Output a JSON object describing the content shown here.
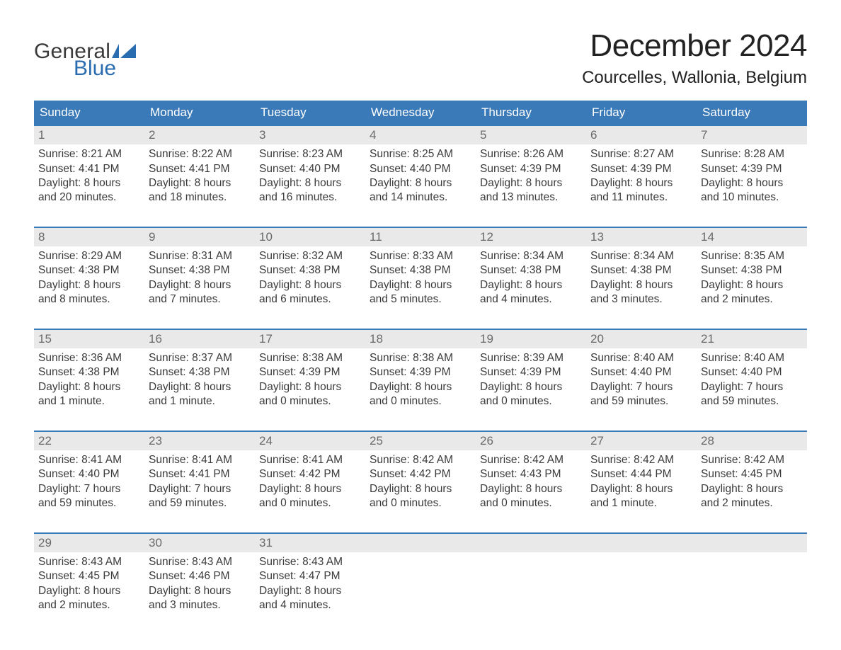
{
  "brand": {
    "general": "General",
    "blue": "Blue",
    "flag_color": "#2a6cb0"
  },
  "title": "December 2024",
  "location": "Courcelles, Wallonia, Belgium",
  "colors": {
    "header_bg": "#3b7ab8",
    "header_text": "#ffffff",
    "week_border": "#3b7ab8",
    "daynum_bg": "#e9e9e9",
    "daynum_text": "#6a6a6a",
    "body_text": "#3b3b3b",
    "title_text": "#222222",
    "page_bg": "#ffffff"
  },
  "typography": {
    "title_fontsize": 44,
    "location_fontsize": 24,
    "dow_fontsize": 17,
    "daynum_fontsize": 17,
    "body_fontsize": 15.5
  },
  "dow": [
    "Sunday",
    "Monday",
    "Tuesday",
    "Wednesday",
    "Thursday",
    "Friday",
    "Saturday"
  ],
  "weeks": [
    [
      {
        "n": "1",
        "sunrise": "Sunrise: 8:21 AM",
        "sunset": "Sunset: 4:41 PM",
        "day1": "Daylight: 8 hours",
        "day2": "and 20 minutes."
      },
      {
        "n": "2",
        "sunrise": "Sunrise: 8:22 AM",
        "sunset": "Sunset: 4:41 PM",
        "day1": "Daylight: 8 hours",
        "day2": "and 18 minutes."
      },
      {
        "n": "3",
        "sunrise": "Sunrise: 8:23 AM",
        "sunset": "Sunset: 4:40 PM",
        "day1": "Daylight: 8 hours",
        "day2": "and 16 minutes."
      },
      {
        "n": "4",
        "sunrise": "Sunrise: 8:25 AM",
        "sunset": "Sunset: 4:40 PM",
        "day1": "Daylight: 8 hours",
        "day2": "and 14 minutes."
      },
      {
        "n": "5",
        "sunrise": "Sunrise: 8:26 AM",
        "sunset": "Sunset: 4:39 PM",
        "day1": "Daylight: 8 hours",
        "day2": "and 13 minutes."
      },
      {
        "n": "6",
        "sunrise": "Sunrise: 8:27 AM",
        "sunset": "Sunset: 4:39 PM",
        "day1": "Daylight: 8 hours",
        "day2": "and 11 minutes."
      },
      {
        "n": "7",
        "sunrise": "Sunrise: 8:28 AM",
        "sunset": "Sunset: 4:39 PM",
        "day1": "Daylight: 8 hours",
        "day2": "and 10 minutes."
      }
    ],
    [
      {
        "n": "8",
        "sunrise": "Sunrise: 8:29 AM",
        "sunset": "Sunset: 4:38 PM",
        "day1": "Daylight: 8 hours",
        "day2": "and 8 minutes."
      },
      {
        "n": "9",
        "sunrise": "Sunrise: 8:31 AM",
        "sunset": "Sunset: 4:38 PM",
        "day1": "Daylight: 8 hours",
        "day2": "and 7 minutes."
      },
      {
        "n": "10",
        "sunrise": "Sunrise: 8:32 AM",
        "sunset": "Sunset: 4:38 PM",
        "day1": "Daylight: 8 hours",
        "day2": "and 6 minutes."
      },
      {
        "n": "11",
        "sunrise": "Sunrise: 8:33 AM",
        "sunset": "Sunset: 4:38 PM",
        "day1": "Daylight: 8 hours",
        "day2": "and 5 minutes."
      },
      {
        "n": "12",
        "sunrise": "Sunrise: 8:34 AM",
        "sunset": "Sunset: 4:38 PM",
        "day1": "Daylight: 8 hours",
        "day2": "and 4 minutes."
      },
      {
        "n": "13",
        "sunrise": "Sunrise: 8:34 AM",
        "sunset": "Sunset: 4:38 PM",
        "day1": "Daylight: 8 hours",
        "day2": "and 3 minutes."
      },
      {
        "n": "14",
        "sunrise": "Sunrise: 8:35 AM",
        "sunset": "Sunset: 4:38 PM",
        "day1": "Daylight: 8 hours",
        "day2": "and 2 minutes."
      }
    ],
    [
      {
        "n": "15",
        "sunrise": "Sunrise: 8:36 AM",
        "sunset": "Sunset: 4:38 PM",
        "day1": "Daylight: 8 hours",
        "day2": "and 1 minute."
      },
      {
        "n": "16",
        "sunrise": "Sunrise: 8:37 AM",
        "sunset": "Sunset: 4:38 PM",
        "day1": "Daylight: 8 hours",
        "day2": "and 1 minute."
      },
      {
        "n": "17",
        "sunrise": "Sunrise: 8:38 AM",
        "sunset": "Sunset: 4:39 PM",
        "day1": "Daylight: 8 hours",
        "day2": "and 0 minutes."
      },
      {
        "n": "18",
        "sunrise": "Sunrise: 8:38 AM",
        "sunset": "Sunset: 4:39 PM",
        "day1": "Daylight: 8 hours",
        "day2": "and 0 minutes."
      },
      {
        "n": "19",
        "sunrise": "Sunrise: 8:39 AM",
        "sunset": "Sunset: 4:39 PM",
        "day1": "Daylight: 8 hours",
        "day2": "and 0 minutes."
      },
      {
        "n": "20",
        "sunrise": "Sunrise: 8:40 AM",
        "sunset": "Sunset: 4:40 PM",
        "day1": "Daylight: 7 hours",
        "day2": "and 59 minutes."
      },
      {
        "n": "21",
        "sunrise": "Sunrise: 8:40 AM",
        "sunset": "Sunset: 4:40 PM",
        "day1": "Daylight: 7 hours",
        "day2": "and 59 minutes."
      }
    ],
    [
      {
        "n": "22",
        "sunrise": "Sunrise: 8:41 AM",
        "sunset": "Sunset: 4:40 PM",
        "day1": "Daylight: 7 hours",
        "day2": "and 59 minutes."
      },
      {
        "n": "23",
        "sunrise": "Sunrise: 8:41 AM",
        "sunset": "Sunset: 4:41 PM",
        "day1": "Daylight: 7 hours",
        "day2": "and 59 minutes."
      },
      {
        "n": "24",
        "sunrise": "Sunrise: 8:41 AM",
        "sunset": "Sunset: 4:42 PM",
        "day1": "Daylight: 8 hours",
        "day2": "and 0 minutes."
      },
      {
        "n": "25",
        "sunrise": "Sunrise: 8:42 AM",
        "sunset": "Sunset: 4:42 PM",
        "day1": "Daylight: 8 hours",
        "day2": "and 0 minutes."
      },
      {
        "n": "26",
        "sunrise": "Sunrise: 8:42 AM",
        "sunset": "Sunset: 4:43 PM",
        "day1": "Daylight: 8 hours",
        "day2": "and 0 minutes."
      },
      {
        "n": "27",
        "sunrise": "Sunrise: 8:42 AM",
        "sunset": "Sunset: 4:44 PM",
        "day1": "Daylight: 8 hours",
        "day2": "and 1 minute."
      },
      {
        "n": "28",
        "sunrise": "Sunrise: 8:42 AM",
        "sunset": "Sunset: 4:45 PM",
        "day1": "Daylight: 8 hours",
        "day2": "and 2 minutes."
      }
    ],
    [
      {
        "n": "29",
        "sunrise": "Sunrise: 8:43 AM",
        "sunset": "Sunset: 4:45 PM",
        "day1": "Daylight: 8 hours",
        "day2": "and 2 minutes."
      },
      {
        "n": "30",
        "sunrise": "Sunrise: 8:43 AM",
        "sunset": "Sunset: 4:46 PM",
        "day1": "Daylight: 8 hours",
        "day2": "and 3 minutes."
      },
      {
        "n": "31",
        "sunrise": "Sunrise: 8:43 AM",
        "sunset": "Sunset: 4:47 PM",
        "day1": "Daylight: 8 hours",
        "day2": "and 4 minutes."
      },
      {
        "empty": true
      },
      {
        "empty": true
      },
      {
        "empty": true
      },
      {
        "empty": true
      }
    ]
  ]
}
